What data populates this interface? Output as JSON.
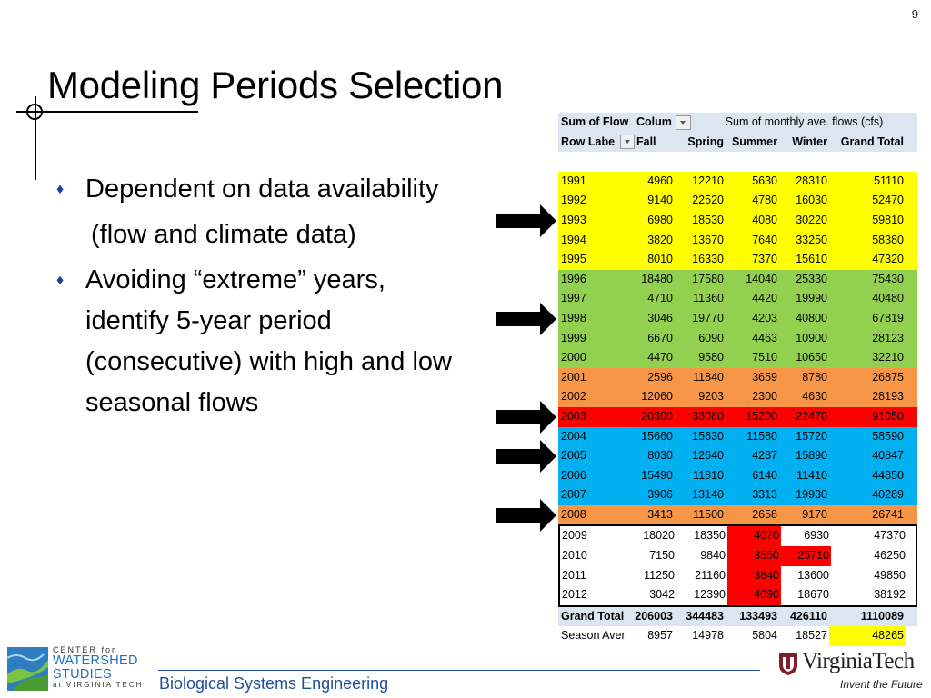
{
  "slide": {
    "number": "9",
    "title": "Modeling Periods Selection"
  },
  "bullets": [
    {
      "text": "Dependent on data availability"
    },
    {
      "text": "Avoiding “extreme” years, identify 5-year period (consecutive) with high and low seasonal flows"
    }
  ],
  "sub_bullet": "(flow and climate data)",
  "pivot": {
    "corner_label": "Sum of Flow",
    "column_labels_label": "Colum",
    "caption": "Sum of monthly ave. flows (cfs)",
    "row_labels_label": "Row Labe",
    "headers": [
      "Fall",
      "Spring",
      "Summer",
      "Winter",
      "Grand Total"
    ],
    "rows": [
      {
        "year": "1991",
        "fall": "4960",
        "spring": "12210",
        "summer": "5630",
        "winter": "28310",
        "total": "51110",
        "color": "y"
      },
      {
        "year": "1992",
        "fall": "9140",
        "spring": "22520",
        "summer": "4780",
        "winter": "16030",
        "total": "52470",
        "color": "y"
      },
      {
        "year": "1993",
        "fall": "6980",
        "spring": "18530",
        "summer": "4080",
        "winter": "30220",
        "total": "59810",
        "color": "y"
      },
      {
        "year": "1994",
        "fall": "3820",
        "spring": "13670",
        "summer": "7640",
        "winter": "33250",
        "total": "58380",
        "color": "y"
      },
      {
        "year": "1995",
        "fall": "8010",
        "spring": "16330",
        "summer": "7370",
        "winter": "15610",
        "total": "47320",
        "color": "y"
      },
      {
        "year": "1996",
        "fall": "18480",
        "spring": "17580",
        "summer": "14040",
        "winter": "25330",
        "total": "75430",
        "color": "g"
      },
      {
        "year": "1997",
        "fall": "4710",
        "spring": "11360",
        "summer": "4420",
        "winter": "19990",
        "total": "40480",
        "color": "g"
      },
      {
        "year": "1998",
        "fall": "3046",
        "spring": "19770",
        "summer": "4203",
        "winter": "40800",
        "total": "67819",
        "color": "g"
      },
      {
        "year": "1999",
        "fall": "6670",
        "spring": "6090",
        "summer": "4463",
        "winter": "10900",
        "total": "28123",
        "color": "g"
      },
      {
        "year": "2000",
        "fall": "4470",
        "spring": "9580",
        "summer": "7510",
        "winter": "10650",
        "total": "32210",
        "color": "g"
      },
      {
        "year": "2001",
        "fall": "2596",
        "spring": "11840",
        "summer": "3659",
        "winter": "8780",
        "total": "26875",
        "color": "o"
      },
      {
        "year": "2002",
        "fall": "12060",
        "spring": "9203",
        "summer": "2300",
        "winter": "4630",
        "total": "28193",
        "color": "o"
      },
      {
        "year": "2003",
        "fall": "20300",
        "spring": "33080",
        "summer": "15200",
        "winter": "22470",
        "total": "91050",
        "color": "r"
      },
      {
        "year": "2004",
        "fall": "15660",
        "spring": "15630",
        "summer": "11580",
        "winter": "15720",
        "total": "58590",
        "color": "b"
      },
      {
        "year": "2005",
        "fall": "8030",
        "spring": "12640",
        "summer": "4287",
        "winter": "15890",
        "total": "40847",
        "color": "b"
      },
      {
        "year": "2006",
        "fall": "15490",
        "spring": "11810",
        "summer": "6140",
        "winter": "11410",
        "total": "44850",
        "color": "b"
      },
      {
        "year": "2007",
        "fall": "3906",
        "spring": "13140",
        "summer": "3313",
        "winter": "19930",
        "total": "40289",
        "color": "b"
      },
      {
        "year": "2008",
        "fall": "3413",
        "spring": "11500",
        "summer": "2658",
        "winter": "9170",
        "total": "26741",
        "color": "o"
      },
      {
        "year": "2009",
        "fall": "18020",
        "spring": "18350",
        "summer": "4070",
        "winter": "6930",
        "total": "47370",
        "color": "w",
        "red_summer": true,
        "red_winter": false
      },
      {
        "year": "2010",
        "fall": "7150",
        "spring": "9840",
        "summer": "3550",
        "winter": "25710",
        "total": "46250",
        "color": "w",
        "red_summer": true,
        "red_winter": true
      },
      {
        "year": "2011",
        "fall": "11250",
        "spring": "21160",
        "summer": "3840",
        "winter": "13600",
        "total": "49850",
        "color": "w",
        "red_summer": true,
        "red_winter": false
      },
      {
        "year": "2012",
        "fall": "3042",
        "spring": "12390",
        "summer": "4090",
        "winter": "18670",
        "total": "38192",
        "color": "w",
        "red_summer": true,
        "red_winter": false
      }
    ],
    "grand_total": {
      "label": "Grand Total",
      "fall": "206003",
      "spring": "344483",
      "summer": "133493",
      "winter": "426110",
      "total": "1110089"
    },
    "season_average": {
      "label": "Season Aver",
      "fall": "8957",
      "spring": "14978",
      "summer": "5804",
      "winter": "18527",
      "total": "48265"
    },
    "highlighted_years": [
      "1993",
      "1998",
      "2003",
      "2005",
      "2008"
    ]
  },
  "footer": {
    "department": "Biological Systems Engineering",
    "cws_center": "CENTER for",
    "cws_line1": "WATERSHED",
    "cws_line2": "STUDIES",
    "cws_line3": "at VIRGINIA TECH",
    "vt_name": "VirginiaTech",
    "vt_tagline": "Invent the Future"
  },
  "colors": {
    "yellow": "#ffff00",
    "green": "#92d050",
    "orange": "#f79646",
    "red": "#ff0000",
    "blue": "#00b0f0",
    "header_blue": "#dce6f1",
    "footer_blue": "#1f4e9b"
  }
}
